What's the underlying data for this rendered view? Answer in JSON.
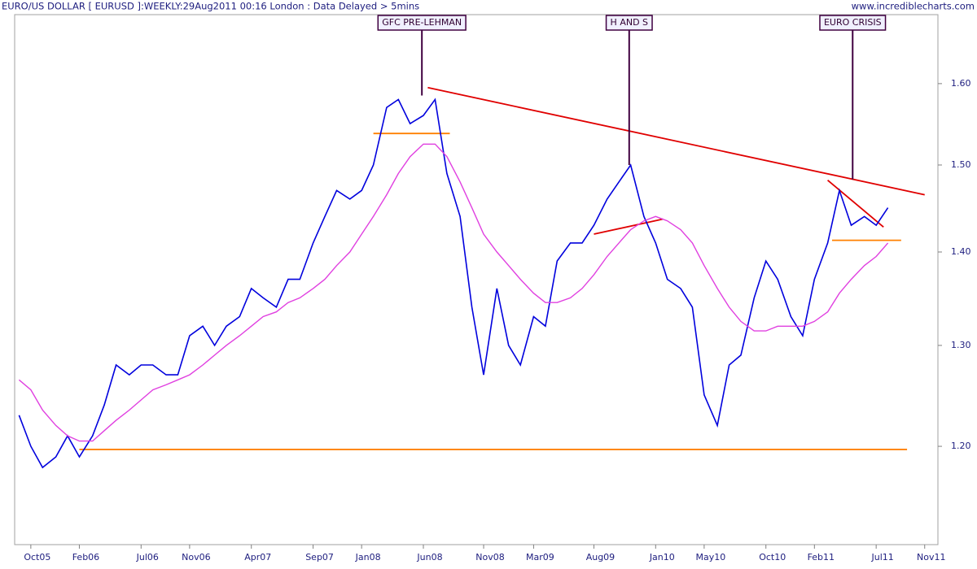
{
  "chart_data": {
    "type": "line",
    "title": "EURO/US DOLLAR [ EURUSD ]:WEEKLY:29Aug2011 00:16 London : Data Delayed > 5mins",
    "source": "www.incrediblecharts.com",
    "log_scale": true,
    "grid": false,
    "xlim": [
      2005.64,
      2011.92
    ],
    "ylim": [
      1.11,
      1.69
    ],
    "xticks": [
      {
        "value": 2005.75,
        "label": "Oct05"
      },
      {
        "value": 2006.08,
        "label": "Feb06"
      },
      {
        "value": 2006.5,
        "label": "Jul06"
      },
      {
        "value": 2006.83,
        "label": "Nov06"
      },
      {
        "value": 2007.25,
        "label": "Apr07"
      },
      {
        "value": 2007.67,
        "label": "Sep07"
      },
      {
        "value": 2008.0,
        "label": "Jan08"
      },
      {
        "value": 2008.42,
        "label": "Jun08"
      },
      {
        "value": 2008.83,
        "label": "Nov08"
      },
      {
        "value": 2009.17,
        "label": "Mar09"
      },
      {
        "value": 2009.58,
        "label": "Aug09"
      },
      {
        "value": 2010.0,
        "label": "Jan10"
      },
      {
        "value": 2010.33,
        "label": "May10"
      },
      {
        "value": 2010.75,
        "label": "Oct10"
      },
      {
        "value": 2011.08,
        "label": "Feb11"
      },
      {
        "value": 2011.5,
        "label": "Jul11"
      },
      {
        "value": 2011.83,
        "label": "Nov11"
      }
    ],
    "yticks": [
      {
        "value": 1.2,
        "label": "1.20"
      },
      {
        "value": 1.3,
        "label": "1.30"
      },
      {
        "value": 1.4,
        "label": "1.40"
      },
      {
        "value": 1.5,
        "label": "1.50"
      },
      {
        "value": 1.6,
        "label": "1.60"
      }
    ],
    "x": [
      2005.67,
      2005.75,
      2005.83,
      2005.92,
      2006.0,
      2006.08,
      2006.17,
      2006.25,
      2006.33,
      2006.42,
      2006.5,
      2006.58,
      2006.67,
      2006.75,
      2006.83,
      2006.92,
      2007.0,
      2007.08,
      2007.17,
      2007.25,
      2007.33,
      2007.42,
      2007.5,
      2007.58,
      2007.67,
      2007.75,
      2007.83,
      2007.92,
      2008.0,
      2008.08,
      2008.17,
      2008.25,
      2008.33,
      2008.42,
      2008.5,
      2008.58,
      2008.67,
      2008.75,
      2008.83,
      2008.92,
      2009.0,
      2009.08,
      2009.17,
      2009.25,
      2009.33,
      2009.42,
      2009.5,
      2009.58,
      2009.67,
      2009.75,
      2009.83,
      2009.92,
      2010.0,
      2010.08,
      2010.17,
      2010.25,
      2010.33,
      2010.42,
      2010.5,
      2010.58,
      2010.67,
      2010.75,
      2010.83,
      2010.92,
      2011.0,
      2011.08,
      2011.17,
      2011.25,
      2011.33,
      2011.42,
      2011.5,
      2011.58
    ],
    "series": [
      {
        "color": "#0000dd",
        "values": [
          1.23,
          1.2,
          1.18,
          1.19,
          1.21,
          1.19,
          1.21,
          1.24,
          1.28,
          1.27,
          1.28,
          1.28,
          1.27,
          1.27,
          1.31,
          1.32,
          1.3,
          1.32,
          1.33,
          1.36,
          1.35,
          1.34,
          1.37,
          1.37,
          1.41,
          1.44,
          1.47,
          1.46,
          1.47,
          1.5,
          1.57,
          1.58,
          1.55,
          1.56,
          1.58,
          1.49,
          1.44,
          1.34,
          1.27,
          1.36,
          1.3,
          1.28,
          1.33,
          1.32,
          1.39,
          1.41,
          1.41,
          1.43,
          1.46,
          1.48,
          1.5,
          1.44,
          1.41,
          1.37,
          1.36,
          1.34,
          1.25,
          1.22,
          1.28,
          1.29,
          1.35,
          1.39,
          1.37,
          1.33,
          1.31,
          1.37,
          1.41,
          1.47,
          1.43,
          1.44,
          1.43,
          1.45
        ]
      },
      {
        "color": "#e040e0",
        "values": [
          1.265,
          1.255,
          1.235,
          1.22,
          1.21,
          1.205,
          1.205,
          1.215,
          1.225,
          1.235,
          1.245,
          1.255,
          1.26,
          1.265,
          1.27,
          1.28,
          1.29,
          1.3,
          1.31,
          1.32,
          1.33,
          1.335,
          1.345,
          1.35,
          1.36,
          1.37,
          1.385,
          1.4,
          1.42,
          1.44,
          1.465,
          1.49,
          1.51,
          1.525,
          1.525,
          1.51,
          1.48,
          1.45,
          1.42,
          1.4,
          1.385,
          1.37,
          1.355,
          1.345,
          1.345,
          1.35,
          1.36,
          1.375,
          1.395,
          1.41,
          1.425,
          1.435,
          1.44,
          1.435,
          1.425,
          1.41,
          1.385,
          1.36,
          1.34,
          1.325,
          1.315,
          1.315,
          1.32,
          1.32,
          1.32,
          1.325,
          1.335,
          1.355,
          1.37,
          1.385,
          1.395,
          1.41
        ]
      }
    ],
    "trendlines": [
      {
        "color": "#e00000",
        "x": [
          2008.45,
          2011.83
        ],
        "y": [
          1.595,
          1.465
        ]
      },
      {
        "color": "#e00000",
        "x": [
          2011.17,
          2011.55
        ],
        "y": [
          1.482,
          1.428
        ]
      },
      {
        "color": "#e00000",
        "x": [
          2009.58,
          2010.05
        ],
        "y": [
          1.42,
          1.437
        ]
      },
      {
        "color": "#ff8000",
        "x": [
          2006.08,
          2011.71
        ],
        "y": [
          1.197,
          1.197
        ]
      },
      {
        "color": "#ff8000",
        "x": [
          2008.08,
          2008.6
        ],
        "y": [
          1.538,
          1.538
        ]
      },
      {
        "color": "#ff8000",
        "x": [
          2011.2,
          2011.67
        ],
        "y": [
          1.413,
          1.413
        ]
      }
    ],
    "annotations": [
      {
        "text": "GFC PRE-LEHMAN",
        "x": 2008.41,
        "y": 1.585
      },
      {
        "text": "H AND S",
        "x": 2009.82,
        "y": 1.5
      },
      {
        "text": "EURO CRISIS",
        "x": 2011.34,
        "y": 1.483
      }
    ]
  }
}
